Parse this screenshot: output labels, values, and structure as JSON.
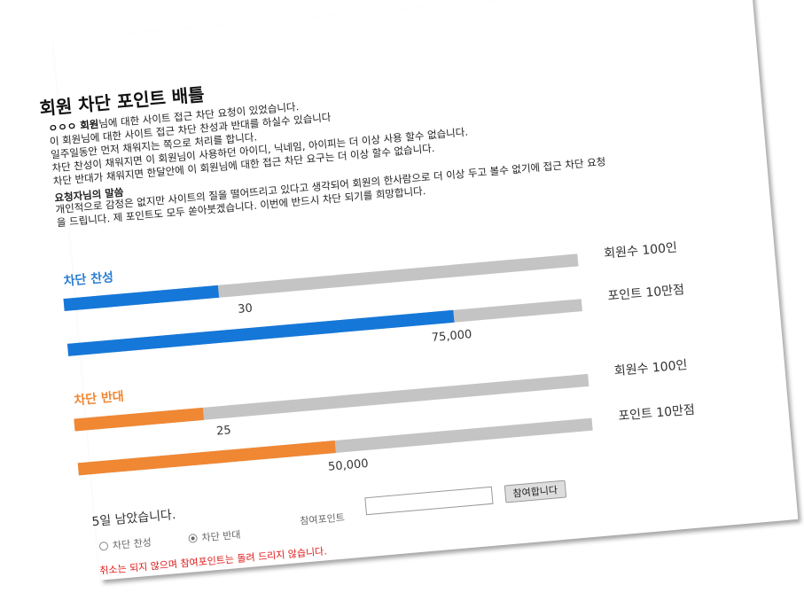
{
  "title": "회원 차단 포인트 배틀",
  "intro": {
    "member": "ㅇㅇㅇ 회원",
    "line1_rest": "님에 대한 사이트 접근 차단 요청이 있었습니다.",
    "line2": "이 회원님에 대한 사이트 접근 차단 찬성과 반대를 하실수 있습니다",
    "line3": "일주일동안 먼저 채워지는 쪽으로 처리를 합니다.",
    "line4": "차단 찬성이 채워지면 이 회원님이 사용하던 아이디, 닉네임, 아이피는 더 이상 사용 할수 없습니다.",
    "line5": "차단 반대가 채워지면 한달안에 이 회원님에 대한 접근 차단 요구는 더 이상 할수 없습니다."
  },
  "requester": {
    "title": "요청자님의 말씀",
    "line1": "개인적으로 감정은 없지만 사이트의 질을 떨어뜨리고 있다고 생각되어 회원의 한사람으로 더 이상 두고 볼수 없기에 접근 차단 요청",
    "line2": "을 드립니다. 제 포인트도 모두 쏟아붓겠습니다. 이번에 반드시 차단 되기를 희망합니다."
  },
  "favor": {
    "label": "차단 찬성",
    "members_label": "회원수 100인",
    "points_label": "포인트 10만점",
    "members_value": "30",
    "points_value": "75,000",
    "members_progress": 0.3,
    "points_progress": 0.75
  },
  "against": {
    "label": "차단 반대",
    "members_label": "회원수 100인",
    "points_label": "포인트 10만점",
    "members_value": "25",
    "points_value": "50,000",
    "members_progress": 0.25,
    "points_progress": 0.5
  },
  "footer": {
    "remaining": "5일 남았습니다.",
    "radio_favor": "차단 찬성",
    "radio_against": "차단 반대",
    "selected": "against",
    "points_label": "참여포인트",
    "points_input_value": "",
    "join_button": "참여합니다",
    "warning": "취소는 되지 않으며 참여포인트는 돌려 드리지 않습니다."
  },
  "colors": {
    "favor": "#1577d8",
    "against": "#f08733",
    "track": "#c4c4c4",
    "warning": "#e01515"
  }
}
